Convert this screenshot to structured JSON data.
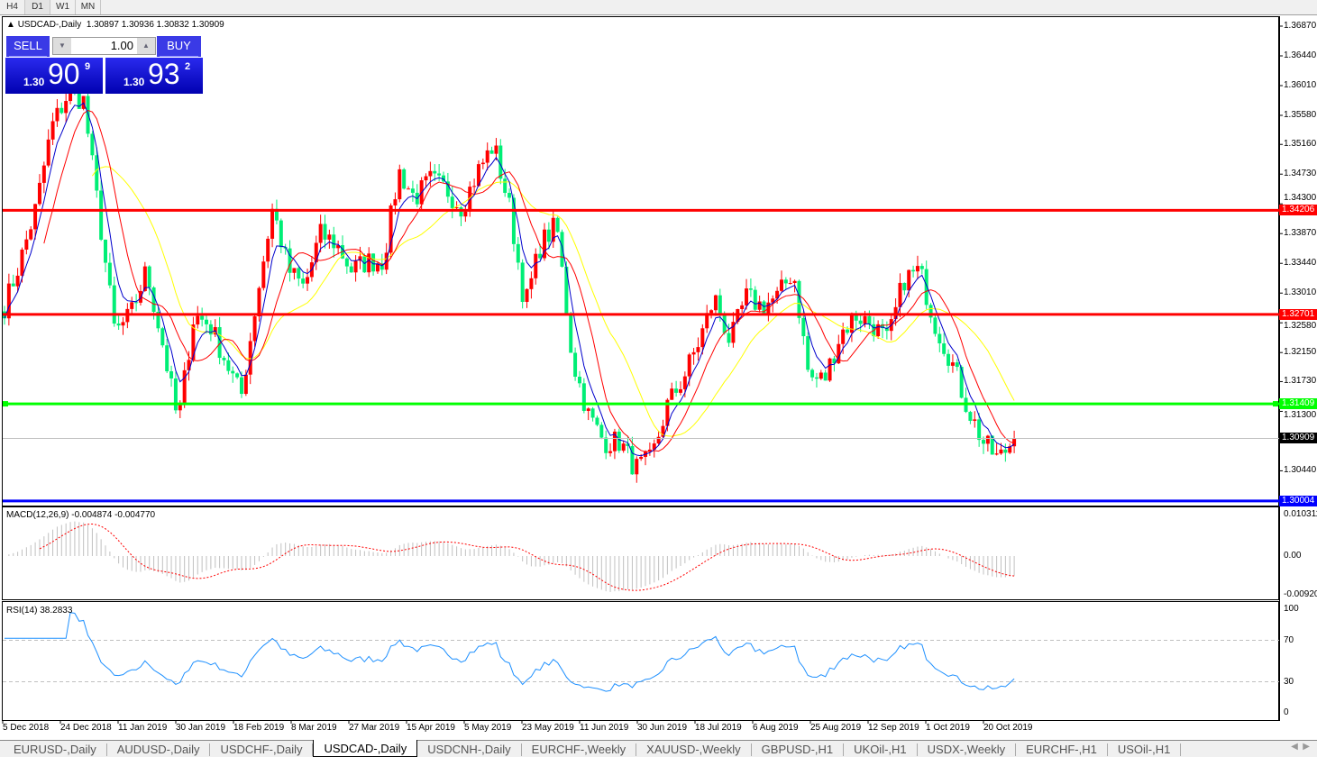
{
  "timeframes": [
    {
      "label": "H4"
    },
    {
      "label": "D1",
      "active": true
    },
    {
      "label": "W1"
    },
    {
      "label": "MN"
    }
  ],
  "chart": {
    "title": "USDCAD-,Daily",
    "ohlc": "1.30897 1.30936 1.30832 1.30909"
  },
  "trade": {
    "sell": "SELL",
    "buy": "BUY",
    "lot": "1.00",
    "bid_small": "1.30",
    "bid_big": "90",
    "bid_sup": "9",
    "ask_small": "1.30",
    "ask_big": "93",
    "ask_sup": "2"
  },
  "price_axis": [
    "1.36870",
    "1.36440",
    "1.36010",
    "1.35580",
    "1.35160",
    "1.34730",
    "1.34300",
    "1.33870",
    "1.33440",
    "1.33010",
    "1.32580",
    "1.32150",
    "1.31730",
    "1.31300",
    "1.30440"
  ],
  "levels": [
    {
      "price": "1.34206",
      "color": "#ff0000"
    },
    {
      "price": "1.32701",
      "color": "#ff0000"
    },
    {
      "price": "1.31409",
      "color": "#00ff00"
    },
    {
      "price": "1.30004",
      "color": "#0000ff"
    }
  ],
  "current_price": "1.30909",
  "colors": {
    "up": "#ff0000",
    "down": "#00ee76",
    "ma_fast": "#0000cc",
    "ma_mid": "#ff0000",
    "ma_slow": "#ffff00",
    "rsi": "#1e90ff",
    "macd_hist": "#c0c0c0",
    "macd_signal": "#ff0000"
  },
  "approx_closes": [
    1.3282,
    1.3347,
    1.3425,
    1.3542,
    1.3588,
    1.3581,
    1.3412,
    1.3243,
    1.3269,
    1.3334,
    1.323,
    1.3112,
    1.3269,
    1.3256,
    1.3204,
    1.3151,
    1.3295,
    1.3425,
    1.3334,
    1.3308,
    1.3386,
    1.3373,
    1.3334,
    1.3347,
    1.3347,
    1.3477,
    1.3438,
    1.3464,
    1.3451,
    1.3425,
    1.3477,
    1.3516,
    1.3425,
    1.3282,
    1.3373,
    1.3399,
    1.3204,
    1.3125,
    1.3086,
    1.3086,
    1.3047,
    1.306,
    1.3138,
    1.3177,
    1.323,
    1.3295,
    1.323,
    1.3295,
    1.3282,
    1.3295,
    1.3334,
    1.3177,
    1.3177,
    1.3243,
    1.3269,
    1.3256,
    1.323,
    1.3321,
    1.3334,
    1.3256,
    1.3204,
    1.3138,
    1.3086,
    1.306,
    1.3091
  ],
  "macd": {
    "label": "MACD(12,26,9) -0.004874 -0.004770",
    "axis": [
      "0.010311",
      "0.00",
      "-0.009203"
    ]
  },
  "rsi": {
    "label": "RSI(14) 38.2833",
    "axis": [
      "100",
      "70",
      "30",
      "0"
    ]
  },
  "dates": [
    "5 Dec 2018",
    "24 Dec 2018",
    "11 Jan 2019",
    "30 Jan 2019",
    "18 Feb 2019",
    "8 Mar 2019",
    "27 Mar 2019",
    "15 Apr 2019",
    "5 May 2019",
    "23 May 2019",
    "11 Jun 2019",
    "30 Jun 2019",
    "18 Jul 2019",
    "6 Aug 2019",
    "25 Aug 2019",
    "12 Sep 2019",
    "1 Oct 2019",
    "20 Oct 2019"
  ],
  "tabs": [
    {
      "label": "EURUSD-,Daily"
    },
    {
      "label": "AUDUSD-,Daily"
    },
    {
      "label": "USDCHF-,Daily"
    },
    {
      "label": "USDCAD-,Daily",
      "active": true
    },
    {
      "label": "USDCNH-,Daily"
    },
    {
      "label": "EURCHF-,Weekly"
    },
    {
      "label": "XAUUSD-,Weekly"
    },
    {
      "label": "GBPUSD-,H1"
    },
    {
      "label": "UKOil-,H1"
    },
    {
      "label": "USDX-,Weekly"
    },
    {
      "label": "EURCHF-,H1"
    },
    {
      "label": "USOil-,H1"
    }
  ]
}
